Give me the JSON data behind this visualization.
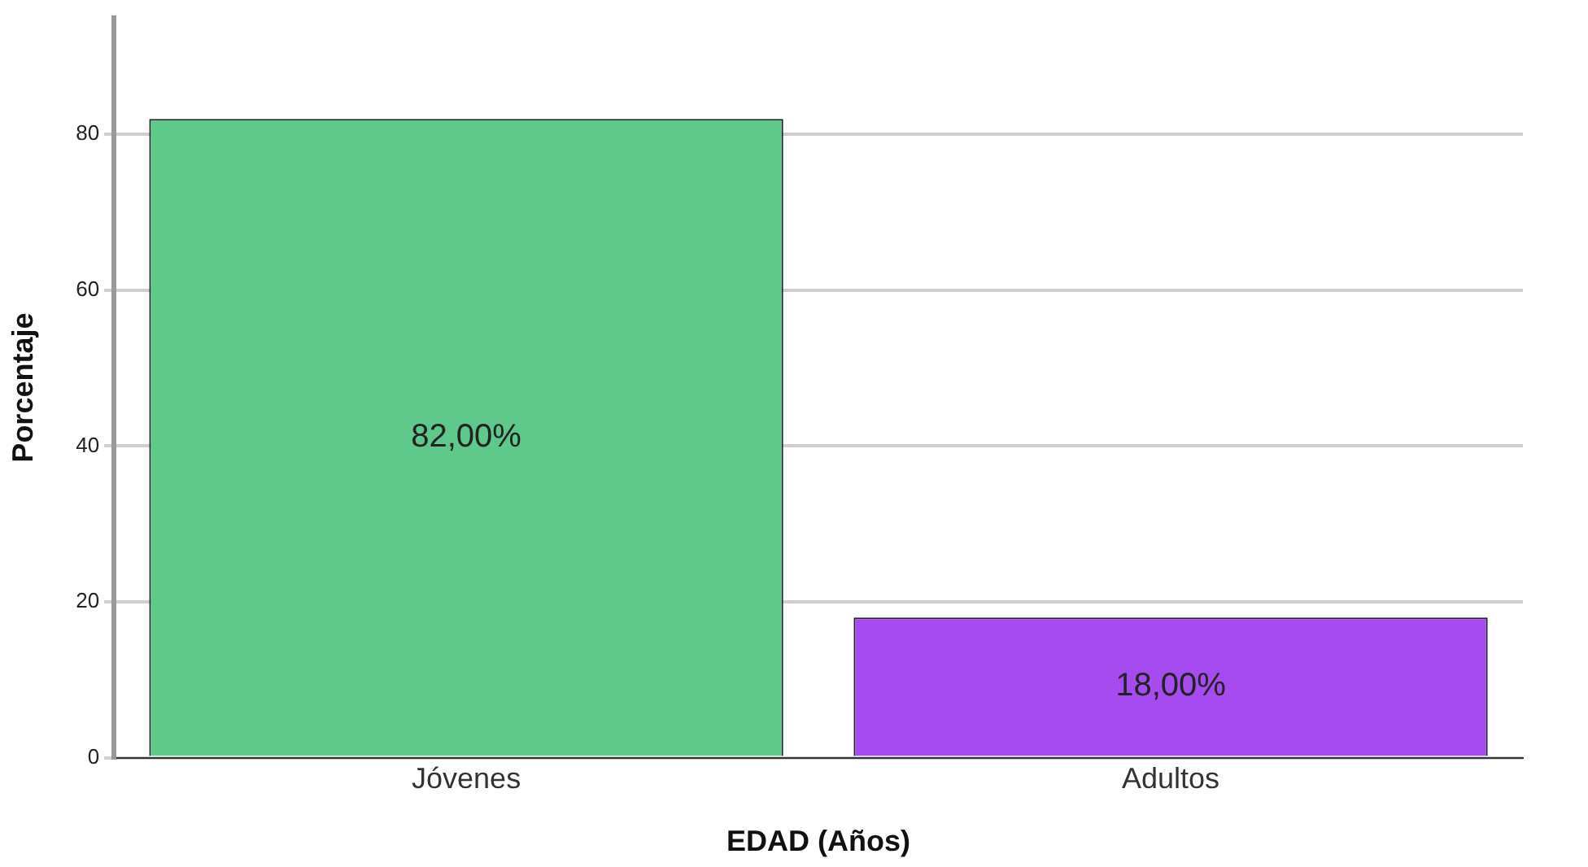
{
  "chart_data": {
    "type": "bar",
    "xlabel": "EDAD (Años)",
    "ylabel": "Porcentaje",
    "categories": [
      "Jóvenes",
      "Adultos"
    ],
    "values": [
      82,
      18
    ],
    "colors": [
      "#5ec98a",
      "#a64bef"
    ],
    "value_labels": [
      "82,00%",
      "18,00%"
    ],
    "ylim": [
      0,
      95
    ],
    "yticks": [
      0,
      20,
      40,
      60,
      80
    ],
    "grid": "y",
    "legend": false
  }
}
